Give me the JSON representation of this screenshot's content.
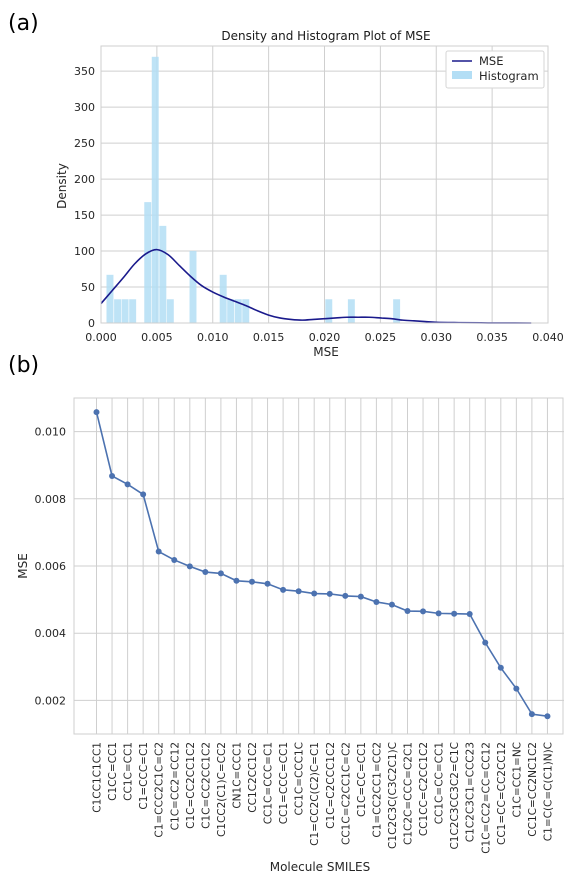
{
  "panels": {
    "a": "(a)",
    "b": "(b)"
  },
  "chart_data": [
    {
      "type": "histogram+density",
      "title": "Density and Histogram Plot of MSE",
      "xlabel": "MSE",
      "ylabel": "Density",
      "xlim": [
        0.0,
        0.04
      ],
      "ylim": [
        0,
        385
      ],
      "xticks": [
        "0.000",
        "0.005",
        "0.010",
        "0.015",
        "0.020",
        "0.025",
        "0.030",
        "0.035",
        "0.040"
      ],
      "yticks": [
        "0",
        "50",
        "100",
        "150",
        "200",
        "250",
        "300",
        "350"
      ],
      "grid": true,
      "legend_position": "top-right",
      "legend": [
        "MSE",
        "Histogram"
      ],
      "colors": {
        "density": "#1a1a8c",
        "histogram": "#b3def5"
      },
      "bin_width": 0.000675,
      "histogram": [
        {
          "x": 0.00083,
          "y": 67
        },
        {
          "x": 0.00151,
          "y": 33
        },
        {
          "x": 0.00218,
          "y": 33
        },
        {
          "x": 0.00286,
          "y": 33
        },
        {
          "x": 0.00421,
          "y": 168
        },
        {
          "x": 0.00488,
          "y": 370
        },
        {
          "x": 0.00556,
          "y": 135
        },
        {
          "x": 0.00623,
          "y": 33
        },
        {
          "x": 0.00826,
          "y": 100
        },
        {
          "x": 0.01096,
          "y": 67
        },
        {
          "x": 0.01163,
          "y": 33
        },
        {
          "x": 0.01231,
          "y": 33
        },
        {
          "x": 0.01298,
          "y": 33
        },
        {
          "x": 0.02041,
          "y": 33
        },
        {
          "x": 0.02243,
          "y": 33
        },
        {
          "x": 0.02648,
          "y": 33
        }
      ],
      "density": [
        [
          0.0,
          27
        ],
        [
          0.001,
          45
        ],
        [
          0.002,
          63
        ],
        [
          0.003,
          82
        ],
        [
          0.004,
          96
        ],
        [
          0.005,
          102
        ],
        [
          0.006,
          95
        ],
        [
          0.007,
          80
        ],
        [
          0.008,
          65
        ],
        [
          0.009,
          52
        ],
        [
          0.01,
          43
        ],
        [
          0.011,
          36
        ],
        [
          0.012,
          30
        ],
        [
          0.013,
          24
        ],
        [
          0.014,
          17
        ],
        [
          0.015,
          11
        ],
        [
          0.016,
          7
        ],
        [
          0.017,
          5
        ],
        [
          0.018,
          4
        ],
        [
          0.019,
          5
        ],
        [
          0.02,
          6
        ],
        [
          0.021,
          7
        ],
        [
          0.022,
          8
        ],
        [
          0.023,
          8
        ],
        [
          0.024,
          8
        ],
        [
          0.025,
          7
        ],
        [
          0.026,
          6
        ],
        [
          0.027,
          4
        ],
        [
          0.028,
          3
        ],
        [
          0.029,
          2
        ],
        [
          0.03,
          1
        ],
        [
          0.032,
          0.5
        ],
        [
          0.034,
          0.2
        ],
        [
          0.036,
          0.1
        ],
        [
          0.0385,
          0
        ]
      ]
    },
    {
      "type": "line",
      "xlabel": "Molecule SMILES",
      "ylabel": "MSE",
      "ylim": [
        0.001,
        0.011
      ],
      "yticks": [
        "0.002",
        "0.004",
        "0.006",
        "0.008",
        "0.010"
      ],
      "grid": true,
      "color": "#4c72b0",
      "categories": [
        "C1CC1C1CC1",
        "C1CC=CC1",
        "CC1C=CC1",
        "C1=CCC=C1",
        "C1=CCC2C1C=C2",
        "C1C=CC2=CC12",
        "C1C=CC2CC1C2",
        "C1C=CC2CC1C2",
        "C1CC2(C1)C=CC2",
        "CN1C=CCC1",
        "CC1C2CC1C2",
        "CC1C=CCC=C1",
        "CC1=CCC=CC1",
        "CC1C=CCC1C",
        "C1=CC2C(C2)C=C1",
        "C1C=C2CCC1C2",
        "CC1C=C2CC1C=C2",
        "C1C=CC=CC1",
        "C1=CC2CC1=CC2",
        "C1C2C3C(C3C2C1)C",
        "C1C2C=CCC=C2C1",
        "CC1CC=C2CC1C2",
        "CC1C=CC=CC1",
        "C1C2C3CC3C2=C1C",
        "C1C2C3C1=CCC23",
        "C1C=CC2=CC=CC12",
        "CC1=CC=CC2CC12",
        "C1C=CC1=NC",
        "CC1C=CC2NC1C2",
        "C1=C(C=C(C1)N)C"
      ],
      "values": [
        0.01058,
        0.00868,
        0.00843,
        0.00813,
        0.00643,
        0.00618,
        0.00599,
        0.00582,
        0.00578,
        0.00556,
        0.00553,
        0.00547,
        0.00529,
        0.00525,
        0.00518,
        0.00517,
        0.00511,
        0.00509,
        0.00493,
        0.00485,
        0.00466,
        0.00465,
        0.00459,
        0.00458,
        0.00457,
        0.00372,
        0.00297,
        0.00235,
        0.00159,
        0.00153
      ]
    }
  ]
}
